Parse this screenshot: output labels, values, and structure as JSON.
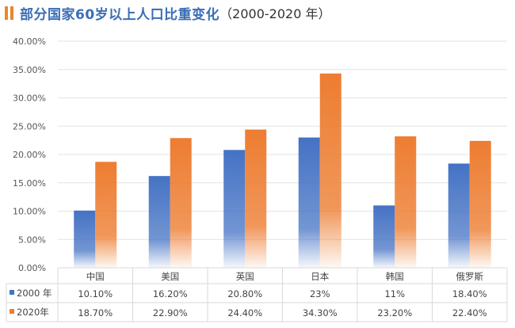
{
  "title": {
    "main": "部分国家60岁以上人口比重变化",
    "suffix": "（2000-2020 年）"
  },
  "colors": {
    "series_2000": "#4472c4",
    "series_2020": "#ed7d31",
    "title_mark": "#e8862f"
  },
  "chart_data": {
    "type": "bar",
    "title": "部分国家60岁以上人口比重变化（2000-2020 年）",
    "categories": [
      "中国",
      "美国",
      "英国",
      "日本",
      "韩国",
      "俄罗斯"
    ],
    "series": [
      {
        "name": "2000 年",
        "values": [
          10.1,
          16.2,
          20.8,
          23,
          11,
          18.4
        ],
        "labels": [
          "10.10%",
          "16.20%",
          "20.80%",
          "23%",
          "11%",
          "18.40%"
        ]
      },
      {
        "name": "2020年",
        "values": [
          18.7,
          22.9,
          24.4,
          34.3,
          23.2,
          22.4
        ],
        "labels": [
          "18.70%",
          "22.90%",
          "24.40%",
          "34.30%",
          "23.20%",
          "22.40%"
        ]
      }
    ],
    "y_ticks": [
      "0.00%",
      "5.00%",
      "10.00%",
      "15.00%",
      "20.00%",
      "25.00%",
      "30.00%",
      "35.00%",
      "40.00%"
    ],
    "ylim": [
      0,
      40
    ],
    "grid": true,
    "legend": "data-table"
  }
}
